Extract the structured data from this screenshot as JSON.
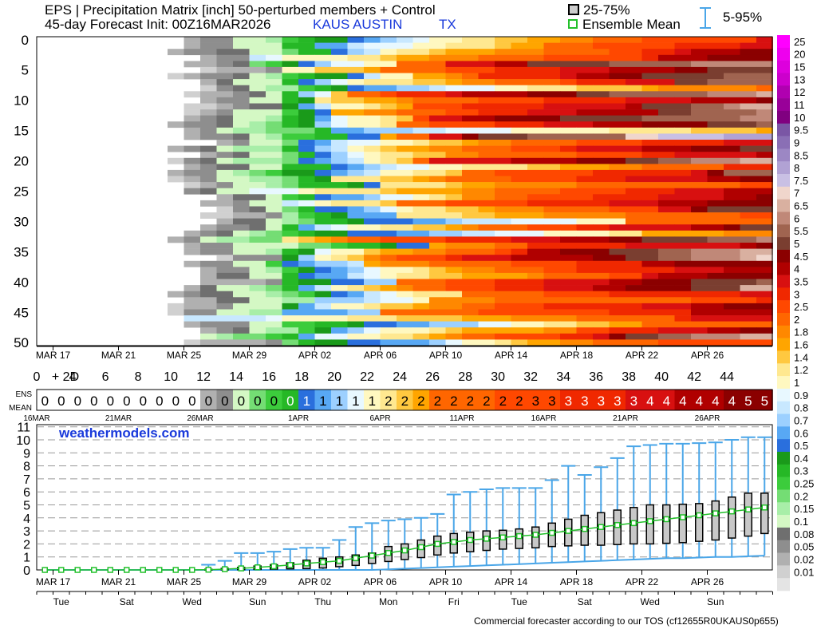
{
  "header": {
    "title_line1": "EPS | Precipitation Matrix [inch]  50-perturbed members + Control",
    "title_line2": "45-day Forecast Init: 00Z16MAR2026",
    "location": "KAUS AUSTIN",
    "state": "TX",
    "legend_iqr": "25-75%",
    "legend_mean": "Ensemble Mean",
    "legend_range": "5-95%"
  },
  "footer": "Commercial forecaster according to our TOS (cf12655R0UKAUS0p655)",
  "watermark": "weathermodels.com",
  "colors": {
    "green_mean": "#22c02a",
    "whisker_blue": "#4aa6e8",
    "title_blue": "#1a3adb"
  },
  "chart_data": [
    {
      "type": "heatmap",
      "name": "member-matrix",
      "ylabel_ticks": [
        "0",
        "5",
        "10",
        "15",
        "20",
        "25",
        "30",
        "35",
        "40",
        "45",
        "50"
      ],
      "x_date_labels": [
        "MAR 17",
        "MAR 21",
        "MAR 25",
        "MAR 29",
        "APR 02",
        "APR 06",
        "APR 10",
        "APR 14",
        "APR 18",
        "APR 22",
        "APR 26"
      ],
      "x_day_labels": [
        "0",
        "+ 2D",
        "4",
        "6",
        "8",
        "10",
        "12",
        "14",
        "16",
        "18",
        "20",
        "22",
        "24",
        "26",
        "28",
        "30",
        "32",
        "34",
        "36",
        "38",
        "40",
        "42",
        "44"
      ],
      "colorbar_labels": [
        "25",
        "20",
        "15",
        "13",
        "12",
        "11",
        "10",
        "9.5",
        "9",
        "8.5",
        "8",
        "7.5",
        "7",
        "6.5",
        "6",
        "5.5",
        "5",
        "4.5",
        "4",
        "3.5",
        "3",
        "2.5",
        "2",
        "1.8",
        "1.6",
        "1.4",
        "1.2",
        "1",
        "0.9",
        "0.8",
        "0.7",
        "0.6",
        "0.5",
        "0.4",
        "0.3",
        "0.25",
        "0.2",
        "0.15",
        "0.1",
        "0.08",
        "0.05",
        "0.02",
        "0.01"
      ],
      "colorbar_colors": [
        "#ff00ff",
        "#ee00ee",
        "#dd00dd",
        "#cc00cc",
        "#b000b0",
        "#990099",
        "#800080",
        "#7a56a5",
        "#8a6fb5",
        "#9c87c4",
        "#b1a2d4",
        "#c9c0e4",
        "#f0d6cc",
        "#d9b0a0",
        "#c08878",
        "#a06450",
        "#7a3e30",
        "#8b0000",
        "#b00000",
        "#d81010",
        "#f02800",
        "#ff4800",
        "#ff6600",
        "#ff8800",
        "#ffa500",
        "#ffc840",
        "#ffe890",
        "#fff8c0",
        "#e8f8ff",
        "#c8e8ff",
        "#9cd0ff",
        "#58a8f4",
        "#2a6fdd",
        "#1a9a1a",
        "#26b826",
        "#3ccc3c",
        "#74dd74",
        "#a8eea8",
        "#d4f8c4",
        "#6f6f6f",
        "#8e8e8e",
        "#b0b0b0",
        "#d0d0d0",
        "#e4e4e4"
      ]
    },
    {
      "type": "table",
      "name": "ensemble-mean-strip",
      "row_labels": [
        "ENS",
        "MEAN"
      ],
      "values": [
        "0",
        "0",
        "0",
        "0",
        "0",
        "0",
        "0",
        "0",
        "0",
        "0",
        "0",
        "0",
        "0",
        "0",
        "0",
        "0",
        "1",
        "1",
        "1",
        "1",
        "1",
        "2",
        "2",
        "2",
        "2",
        "2",
        "2",
        "2",
        "2",
        "2",
        "3",
        "3",
        "3",
        "3",
        "3",
        "3",
        "3",
        "4",
        "4",
        "4",
        "4",
        "4",
        "4",
        "5",
        "5"
      ],
      "date_labels": [
        "16MAR",
        "21MAR",
        "26MAR",
        "1APR",
        "6APR",
        "11APR",
        "16APR",
        "21APR",
        "26APR"
      ]
    },
    {
      "type": "line",
      "name": "cumulative-precip-boxplot",
      "ylim": [
        0,
        11
      ],
      "yticks": [
        "0",
        "1",
        "2",
        "3",
        "4",
        "5",
        "6",
        "7",
        "8",
        "9",
        "10",
        "11"
      ],
      "x_date_labels": [
        "MAR 17",
        "MAR 21",
        "MAR 25",
        "MAR 29",
        "APR 02",
        "APR 06",
        "APR 10",
        "APR 14",
        "APR 18",
        "APR 22",
        "APR 26"
      ],
      "weekday_labels": [
        "Tue",
        "Sat",
        "Wed",
        "Sun",
        "Thu",
        "Mon",
        "Fri",
        "Tue",
        "Sat",
        "Wed",
        "Sun"
      ],
      "days": [
        0,
        1,
        2,
        3,
        4,
        5,
        6,
        7,
        8,
        9,
        10,
        11,
        12,
        13,
        14,
        15,
        16,
        17,
        18,
        19,
        20,
        21,
        22,
        23,
        24,
        25,
        26,
        27,
        28,
        29,
        30,
        31,
        32,
        33,
        34,
        35,
        36,
        37,
        38,
        39,
        40,
        41,
        42,
        43,
        44
      ],
      "mean": [
        0,
        0,
        0,
        0,
        0,
        0,
        0,
        0,
        0,
        0,
        0.02,
        0.06,
        0.12,
        0.2,
        0.28,
        0.38,
        0.5,
        0.6,
        0.7,
        0.9,
        1.1,
        1.3,
        1.5,
        1.75,
        2.0,
        2.15,
        2.3,
        2.4,
        2.5,
        2.6,
        2.7,
        2.85,
        3.0,
        3.15,
        3.3,
        3.45,
        3.6,
        3.75,
        3.9,
        4.05,
        4.2,
        4.35,
        4.5,
        4.65,
        4.8
      ],
      "p25": [
        0,
        0,
        0,
        0,
        0,
        0,
        0,
        0,
        0,
        0,
        0,
        0.01,
        0.02,
        0.04,
        0.06,
        0.08,
        0.1,
        0.15,
        0.25,
        0.35,
        0.5,
        0.65,
        0.8,
        0.95,
        1.15,
        1.3,
        1.4,
        1.5,
        1.6,
        1.65,
        1.7,
        1.8,
        1.85,
        1.9,
        1.9,
        1.95,
        2.0,
        2.0,
        2.05,
        2.1,
        2.2,
        2.3,
        2.45,
        2.6,
        2.8
      ],
      "p75": [
        0,
        0,
        0,
        0,
        0,
        0,
        0,
        0,
        0,
        0,
        0.05,
        0.12,
        0.2,
        0.3,
        0.4,
        0.55,
        0.75,
        0.9,
        1.0,
        1.15,
        1.3,
        1.8,
        2.0,
        2.3,
        2.6,
        2.8,
        2.9,
        3.0,
        3.05,
        3.15,
        3.3,
        3.6,
        3.9,
        4.2,
        4.4,
        4.6,
        4.8,
        5.0,
        5.0,
        5.05,
        5.1,
        5.3,
        5.6,
        5.9,
        5.9
      ],
      "p05": [
        0,
        0,
        0,
        0,
        0,
        0,
        0,
        0,
        0,
        0,
        0,
        0,
        0,
        0,
        0,
        0,
        0,
        0,
        0,
        0,
        0,
        0.05,
        0.1,
        0.15,
        0.2,
        0.25,
        0.3,
        0.35,
        0.4,
        0.45,
        0.5,
        0.55,
        0.6,
        0.65,
        0.7,
        0.75,
        0.8,
        0.85,
        0.9,
        0.9,
        0.95,
        1.0,
        1.0,
        1.05,
        1.1
      ],
      "p95": [
        0,
        0,
        0,
        0,
        0,
        0,
        0,
        0,
        0,
        0,
        0.4,
        0.7,
        1.3,
        1.3,
        1.4,
        1.6,
        1.7,
        1.7,
        2.3,
        3.3,
        3.6,
        3.8,
        3.9,
        4.0,
        4.3,
        5.8,
        6.0,
        6.2,
        6.3,
        6.3,
        6.3,
        6.9,
        8.0,
        7.3,
        7.9,
        8.6,
        9.5,
        9.6,
        9.7,
        9.7,
        9.75,
        9.8,
        10.0,
        10.2,
        10.2
      ]
    }
  ]
}
